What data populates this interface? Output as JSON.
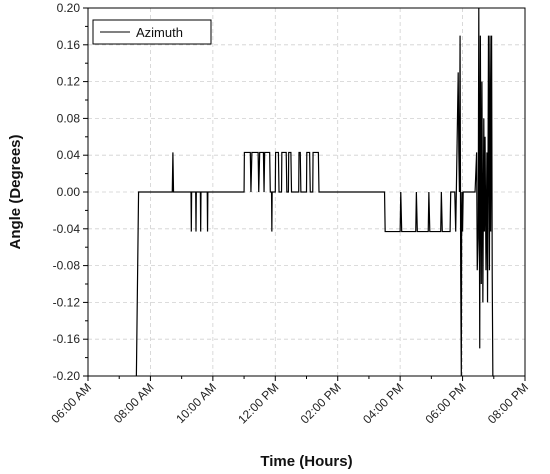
{
  "chart_data": {
    "type": "line",
    "xlabel": "Time (Hours)",
    "ylabel": "Angle (Degrees)",
    "xlim": [
      6,
      20
    ],
    "ylim": [
      -0.2,
      0.2
    ],
    "x_ticks": [
      6,
      8,
      10,
      12,
      14,
      16,
      18,
      20
    ],
    "x_tick_labels": [
      "06:00 AM",
      "08:00 AM",
      "10:00 AM",
      "12:00 PM",
      "02:00 PM",
      "04:00 PM",
      "06:00 PM",
      "08:00 PM"
    ],
    "y_ticks": [
      -0.2,
      -0.16,
      -0.12,
      -0.08,
      -0.04,
      0.0,
      0.04,
      0.08,
      0.12,
      0.16,
      0.2
    ],
    "y_tick_labels": [
      "-0.20",
      "-0.16",
      "-0.12",
      "-0.08",
      "-0.04",
      "0.00",
      "0.04",
      "0.08",
      "0.12",
      "0.16",
      "0.20"
    ],
    "grid": true,
    "legend_position": "top-left",
    "series": [
      {
        "name": "Azimuth",
        "color": "#000000",
        "points": [
          [
            7.55,
            -0.2
          ],
          [
            7.62,
            0.0
          ],
          [
            8.7,
            0.0
          ],
          [
            8.72,
            0.043
          ],
          [
            8.74,
            0.0
          ],
          [
            9.3,
            0.0
          ],
          [
            9.31,
            -0.043
          ],
          [
            9.32,
            0.0
          ],
          [
            9.45,
            0.0
          ],
          [
            9.46,
            -0.043
          ],
          [
            9.47,
            0.0
          ],
          [
            9.6,
            0.0
          ],
          [
            9.61,
            -0.043
          ],
          [
            9.62,
            0.0
          ],
          [
            9.82,
            0.0
          ],
          [
            9.83,
            -0.043
          ],
          [
            9.84,
            0.0
          ],
          [
            11.0,
            0.0
          ],
          [
            11.01,
            0.043
          ],
          [
            11.2,
            0.043
          ],
          [
            11.22,
            0.0
          ],
          [
            11.25,
            0.043
          ],
          [
            11.45,
            0.043
          ],
          [
            11.47,
            0.0
          ],
          [
            11.5,
            0.043
          ],
          [
            11.62,
            0.043
          ],
          [
            11.64,
            0.0
          ],
          [
            11.66,
            0.043
          ],
          [
            11.82,
            0.043
          ],
          [
            11.84,
            0.0
          ],
          [
            11.88,
            0.0
          ],
          [
            11.89,
            -0.043
          ],
          [
            11.9,
            0.0
          ],
          [
            12.0,
            0.0
          ],
          [
            12.01,
            0.043
          ],
          [
            12.1,
            0.043
          ],
          [
            12.12,
            0.0
          ],
          [
            12.2,
            0.0
          ],
          [
            12.21,
            0.043
          ],
          [
            12.35,
            0.043
          ],
          [
            12.37,
            0.0
          ],
          [
            12.42,
            0.0
          ],
          [
            12.43,
            0.043
          ],
          [
            12.5,
            0.043
          ],
          [
            12.52,
            0.0
          ],
          [
            12.75,
            0.0
          ],
          [
            12.76,
            0.043
          ],
          [
            12.8,
            0.043
          ],
          [
            12.82,
            0.0
          ],
          [
            13.0,
            0.0
          ],
          [
            13.01,
            0.043
          ],
          [
            13.1,
            0.043
          ],
          [
            13.12,
            0.0
          ],
          [
            13.2,
            0.0
          ],
          [
            13.21,
            0.043
          ],
          [
            13.38,
            0.043
          ],
          [
            13.4,
            0.0
          ],
          [
            13.55,
            0.0
          ],
          [
            15.5,
            0.0
          ],
          [
            15.52,
            -0.043
          ],
          [
            16.0,
            -0.043
          ],
          [
            16.02,
            0.0
          ],
          [
            16.05,
            -0.043
          ],
          [
            16.5,
            -0.043
          ],
          [
            16.52,
            0.0
          ],
          [
            16.55,
            -0.043
          ],
          [
            16.9,
            -0.043
          ],
          [
            16.92,
            0.0
          ],
          [
            16.95,
            -0.043
          ],
          [
            17.3,
            -0.043
          ],
          [
            17.32,
            0.0
          ],
          [
            17.35,
            -0.043
          ],
          [
            17.6,
            -0.043
          ],
          [
            17.62,
            0.0
          ],
          [
            17.75,
            0.0
          ],
          [
            17.78,
            -0.043
          ],
          [
            17.8,
            0.0
          ],
          [
            17.82,
            0.043
          ],
          [
            17.86,
            0.13
          ],
          [
            17.88,
            0.043
          ],
          [
            17.9,
            0.0
          ],
          [
            17.92,
            0.17
          ],
          [
            17.94,
            -0.09
          ],
          [
            17.96,
            -0.2
          ],
          [
            17.97,
            -0.02
          ],
          [
            17.98,
            0.0
          ],
          [
            18.0,
            -0.043
          ],
          [
            18.02,
            0.0
          ],
          [
            18.4,
            0.0
          ],
          [
            18.45,
            0.043
          ],
          [
            18.47,
            -0.085
          ],
          [
            18.5,
            -0.05
          ],
          [
            18.52,
            0.2
          ],
          [
            18.55,
            -0.17
          ],
          [
            18.57,
            0.17
          ],
          [
            18.6,
            -0.1
          ],
          [
            18.62,
            0.12
          ],
          [
            18.65,
            -0.12
          ],
          [
            18.68,
            0.08
          ],
          [
            18.7,
            -0.043
          ],
          [
            18.72,
            0.06
          ],
          [
            18.75,
            -0.085
          ],
          [
            18.78,
            0.043
          ],
          [
            18.8,
            -0.12
          ],
          [
            18.83,
            0.17
          ],
          [
            18.86,
            -0.085
          ],
          [
            18.88,
            0.17
          ],
          [
            18.9,
            -0.043
          ],
          [
            18.93,
            0.17
          ],
          [
            18.95,
            -0.09
          ],
          [
            18.97,
            -0.2
          ],
          [
            19.0,
            -0.2
          ]
        ]
      }
    ]
  }
}
